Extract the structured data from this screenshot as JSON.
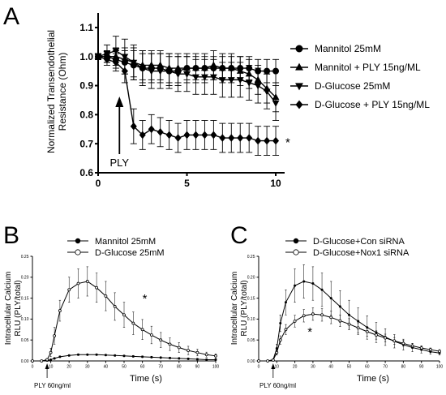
{
  "chart_data": [
    {
      "panel": "A",
      "type": "line",
      "ylabel": [
        "Normalized Transendothelial",
        "Resistance (Ohm)"
      ],
      "xlabel": "",
      "xlim": [
        0,
        10.5
      ],
      "ylim": [
        0.6,
        1.15
      ],
      "xticks": [
        0,
        5,
        10
      ],
      "yticks": [
        0.6,
        0.7,
        0.8,
        0.9,
        1.0,
        1.1
      ],
      "ytick_labels": [
        "0.6",
        "0.7",
        "0.8",
        "0.9",
        "1.0",
        "1.1"
      ],
      "legend_position": "right",
      "series": [
        {
          "name": "Mannitol 25mM",
          "marker": "circle",
          "x": [
            0,
            0.5,
            1,
            1.5,
            2,
            2.5,
            3,
            3.5,
            4,
            4.5,
            5,
            5.5,
            6,
            6.5,
            7,
            7.5,
            8,
            8.5,
            9,
            9.5,
            10
          ],
          "y": [
            1.0,
            1.0,
            0.99,
            0.98,
            0.97,
            0.96,
            0.96,
            0.96,
            0.95,
            0.95,
            0.96,
            0.96,
            0.96,
            0.96,
            0.96,
            0.96,
            0.96,
            0.96,
            0.95,
            0.95,
            0.95
          ],
          "err": [
            0.01,
            0.02,
            0.03,
            0.04,
            0.05,
            0.05,
            0.05,
            0.05,
            0.05,
            0.05,
            0.04,
            0.04,
            0.04,
            0.04,
            0.04,
            0.04,
            0.04,
            0.04,
            0.04,
            0.04,
            0.04
          ]
        },
        {
          "name": "Mannitol + PLY 15ng/ML",
          "marker": "triangle-up",
          "x": [
            0,
            0.5,
            1,
            1.5,
            2,
            2.5,
            3,
            3.5,
            4,
            4.5,
            5,
            5.5,
            6,
            6.5,
            7,
            7.5,
            8,
            8.5,
            9,
            9.5,
            10
          ],
          "y": [
            1.0,
            1.0,
            1.0,
            0.99,
            0.98,
            0.97,
            0.97,
            0.97,
            0.96,
            0.96,
            0.96,
            0.96,
            0.96,
            0.97,
            0.96,
            0.96,
            0.95,
            0.94,
            0.92,
            0.89,
            0.86
          ],
          "err": [
            0.01,
            0.02,
            0.03,
            0.04,
            0.05,
            0.05,
            0.05,
            0.05,
            0.05,
            0.05,
            0.05,
            0.05,
            0.05,
            0.05,
            0.05,
            0.05,
            0.05,
            0.05,
            0.05,
            0.05,
            0.05
          ]
        },
        {
          "name": "D-Glucose 25mM",
          "marker": "triangle-down",
          "x": [
            0,
            0.5,
            1,
            1.5,
            2,
            2.5,
            3,
            3.5,
            4,
            4.5,
            5,
            5.5,
            6,
            6.5,
            7,
            7.5,
            8,
            8.5,
            9,
            9.5,
            10
          ],
          "y": [
            1.0,
            1.01,
            1.02,
            1.0,
            0.98,
            0.96,
            0.95,
            0.95,
            0.95,
            0.94,
            0.94,
            0.93,
            0.93,
            0.93,
            0.92,
            0.92,
            0.92,
            0.91,
            0.9,
            0.88,
            0.84
          ],
          "err": [
            0.01,
            0.03,
            0.05,
            0.06,
            0.06,
            0.06,
            0.06,
            0.06,
            0.06,
            0.06,
            0.06,
            0.06,
            0.06,
            0.06,
            0.06,
            0.06,
            0.06,
            0.06,
            0.06,
            0.06,
            0.06
          ]
        },
        {
          "name": "D-Glucose + PLY 15ng/ML",
          "marker": "diamond",
          "x": [
            0,
            0.5,
            1,
            1.5,
            2,
            2.5,
            3,
            3.5,
            4,
            4.5,
            5,
            5.5,
            6,
            6.5,
            7,
            7.5,
            8,
            8.5,
            9,
            9.5,
            10
          ],
          "y": [
            1.0,
            0.99,
            0.98,
            0.95,
            0.76,
            0.73,
            0.75,
            0.74,
            0.73,
            0.72,
            0.73,
            0.73,
            0.73,
            0.73,
            0.72,
            0.72,
            0.72,
            0.72,
            0.71,
            0.71,
            0.71
          ],
          "err": [
            0.01,
            0.02,
            0.03,
            0.04,
            0.06,
            0.05,
            0.05,
            0.05,
            0.05,
            0.05,
            0.05,
            0.05,
            0.05,
            0.05,
            0.05,
            0.05,
            0.05,
            0.05,
            0.05,
            0.05,
            0.05
          ]
        }
      ],
      "annotations": {
        "arrow_label": "PLY",
        "arrow_x": 1.2,
        "significance": "*"
      }
    },
    {
      "panel": "B",
      "type": "line",
      "ylabel": [
        "Intracellular Calcium",
        "RLU (PLY/total)"
      ],
      "xlabel": "Time (s)",
      "xlim": [
        0,
        100
      ],
      "ylim": [
        0,
        0.25
      ],
      "xticks": [
        0,
        10,
        20,
        30,
        40,
        50,
        60,
        70,
        80,
        90,
        100
      ],
      "yticks": [
        0,
        0.05,
        0.1,
        0.15,
        0.2,
        0.25
      ],
      "ytick_labels": [
        "0.00",
        "0.05",
        "0.10",
        "0.15",
        "0.20",
        "0.25"
      ],
      "legend_position": "top",
      "series": [
        {
          "name": "Mannitol 25mM",
          "marker": "filled-circle",
          "x": [
            0,
            5,
            8,
            10,
            12,
            15,
            20,
            25,
            30,
            35,
            40,
            45,
            50,
            55,
            60,
            65,
            70,
            75,
            80,
            85,
            90,
            95,
            100
          ],
          "y": [
            0,
            0,
            0.001,
            0.003,
            0.006,
            0.01,
            0.013,
            0.015,
            0.015,
            0.015,
            0.014,
            0.013,
            0.012,
            0.011,
            0.01,
            0.009,
            0.008,
            0.007,
            0.006,
            0.005,
            0.004,
            0.003,
            0.003
          ],
          "err": [
            0,
            0,
            0.001,
            0.001,
            0.002,
            0.002,
            0.002,
            0.002,
            0.002,
            0.002,
            0.002,
            0.002,
            0.002,
            0.002,
            0.002,
            0.002,
            0.002,
            0.002,
            0.002,
            0.002,
            0.002,
            0.002,
            0.002
          ]
        },
        {
          "name": "D-Glucose 25mM",
          "marker": "open-circle",
          "x": [
            0,
            5,
            8,
            10,
            12,
            15,
            20,
            25,
            30,
            35,
            40,
            45,
            50,
            55,
            60,
            65,
            70,
            75,
            80,
            85,
            90,
            95,
            100
          ],
          "y": [
            0,
            0,
            0.003,
            0.02,
            0.06,
            0.12,
            0.17,
            0.185,
            0.19,
            0.175,
            0.155,
            0.13,
            0.11,
            0.09,
            0.075,
            0.062,
            0.05,
            0.04,
            0.032,
            0.025,
            0.02,
            0.015,
            0.012
          ],
          "err": [
            0,
            0,
            0.002,
            0.01,
            0.02,
            0.025,
            0.03,
            0.035,
            0.035,
            0.035,
            0.035,
            0.033,
            0.03,
            0.027,
            0.024,
            0.021,
            0.018,
            0.015,
            0.012,
            0.01,
            0.008,
            0.006,
            0.005
          ]
        }
      ],
      "annotations": {
        "arrow_label": "PLY 60ng/ml",
        "arrow_x": 8,
        "significance": "*"
      }
    },
    {
      "panel": "C",
      "type": "line",
      "ylabel": [
        "Intracellular Calcium",
        "RLU (PLY/total)"
      ],
      "xlabel": "Time (s)",
      "xlim": [
        0,
        100
      ],
      "ylim": [
        0,
        0.25
      ],
      "xticks": [
        0,
        10,
        20,
        30,
        40,
        50,
        60,
        70,
        80,
        90,
        100
      ],
      "yticks": [
        0,
        0.05,
        0.1,
        0.15,
        0.2,
        0.25
      ],
      "ytick_labels": [
        "0.00",
        "0.05",
        "0.10",
        "0.15",
        "0.20",
        "0.25"
      ],
      "legend_position": "top",
      "series": [
        {
          "name": "D-Glucose+Con siRNA",
          "marker": "filled-circle",
          "x": [
            0,
            5,
            8,
            10,
            12,
            15,
            20,
            25,
            30,
            35,
            40,
            45,
            50,
            55,
            60,
            65,
            70,
            75,
            80,
            85,
            90,
            95,
            100
          ],
          "y": [
            0,
            0,
            0.003,
            0.03,
            0.09,
            0.14,
            0.18,
            0.19,
            0.185,
            0.17,
            0.15,
            0.13,
            0.11,
            0.095,
            0.08,
            0.068,
            0.057,
            0.047,
            0.039,
            0.032,
            0.027,
            0.022,
            0.019
          ],
          "err": [
            0,
            0,
            0.002,
            0.01,
            0.02,
            0.03,
            0.04,
            0.04,
            0.04,
            0.04,
            0.04,
            0.038,
            0.035,
            0.032,
            0.028,
            0.024,
            0.02,
            0.016,
            0.013,
            0.01,
            0.008,
            0.006,
            0.005
          ]
        },
        {
          "name": "D-Glucose+Nox1 siRNA",
          "marker": "open-circle",
          "x": [
            0,
            5,
            8,
            10,
            12,
            15,
            20,
            25,
            30,
            35,
            40,
            45,
            50,
            55,
            60,
            65,
            70,
            75,
            80,
            85,
            90,
            95,
            100
          ],
          "y": [
            0,
            0,
            0.002,
            0.02,
            0.05,
            0.075,
            0.095,
            0.108,
            0.112,
            0.11,
            0.104,
            0.096,
            0.088,
            0.079,
            0.07,
            0.062,
            0.055,
            0.048,
            0.042,
            0.036,
            0.031,
            0.027,
            0.023
          ],
          "err": [
            0,
            0,
            0.001,
            0.006,
            0.01,
            0.012,
            0.014,
            0.015,
            0.015,
            0.015,
            0.015,
            0.014,
            0.013,
            0.012,
            0.011,
            0.01,
            0.009,
            0.008,
            0.007,
            0.006,
            0.005,
            0.004,
            0.004
          ]
        }
      ],
      "annotations": {
        "arrow_label": "PLY 60ng/ml",
        "arrow_x": 8,
        "significance": "*"
      }
    }
  ],
  "panel_letters": [
    "A",
    "B",
    "C"
  ]
}
